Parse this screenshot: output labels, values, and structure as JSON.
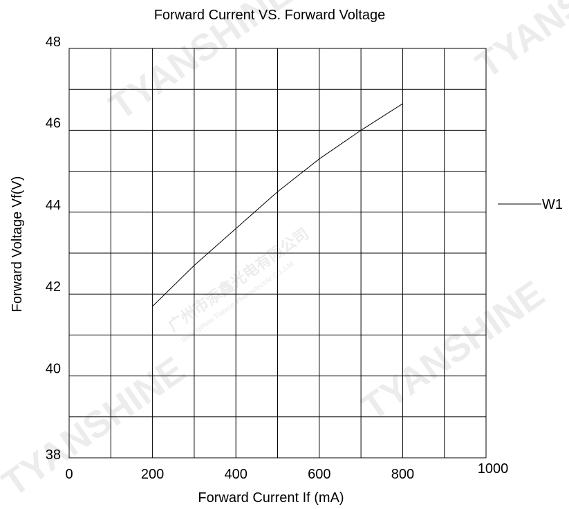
{
  "chart_data": {
    "type": "line",
    "title": "Forward Current  VS. Forward Voltage",
    "xlabel": "Forward Current  If (mA)",
    "ylabel": "Forward Voltage Vf(V)",
    "xlim": [
      0,
      1000
    ],
    "ylim": [
      38,
      48
    ],
    "x_ticks": [
      "0",
      "200",
      "400",
      "600",
      "800",
      "1000"
    ],
    "y_ticks": [
      "38",
      "40",
      "42",
      "44",
      "46",
      "48"
    ],
    "x_grid_step": 100,
    "y_grid_step": 1,
    "grid": true,
    "legend_position": "right",
    "series": [
      {
        "name": "W1",
        "color": "#000000",
        "x": [
          200,
          300,
          400,
          500,
          600,
          700,
          800
        ],
        "y": [
          41.7,
          42.7,
          43.6,
          44.5,
          45.3,
          46.0,
          46.65
        ]
      }
    ]
  },
  "watermark": {
    "brand": "TYANSHINE",
    "company_cn": "广州市添鑫光电有限公司",
    "company_en": "Guangzhou Tianxin Photoelectric Co.,Ltd"
  }
}
